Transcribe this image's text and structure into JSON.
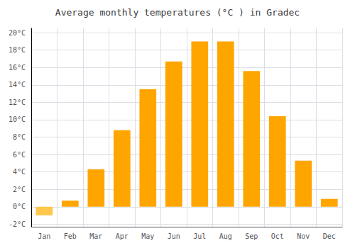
{
  "chart_data": {
    "type": "bar",
    "title": "Average monthly temperatures (°C ) in Gradec",
    "categories": [
      "Jan",
      "Feb",
      "Mar",
      "Apr",
      "May",
      "Jun",
      "Jul",
      "Aug",
      "Sep",
      "Oct",
      "Nov",
      "Dec"
    ],
    "values": [
      -1.0,
      0.7,
      4.3,
      8.8,
      13.5,
      16.7,
      19.0,
      19.0,
      15.6,
      10.4,
      5.3,
      0.9
    ],
    "colors": [
      "#FFC84C",
      "#FFA500",
      "#FFA500",
      "#FFA500",
      "#FFA500",
      "#FFA500",
      "#FFA500",
      "#FFA500",
      "#FFA500",
      "#FFA500",
      "#FFA500",
      "#FFA500"
    ],
    "ylim": [
      -2.3,
      20.5
    ],
    "yticks": [
      {
        "value": -2,
        "label": "-2°C"
      },
      {
        "value": 0,
        "label": "0°C"
      },
      {
        "value": 2,
        "label": "2°C"
      },
      {
        "value": 4,
        "label": "4°C"
      },
      {
        "value": 6,
        "label": "6°C"
      },
      {
        "value": 8,
        "label": "8°C"
      },
      {
        "value": 10,
        "label": "10°C"
      },
      {
        "value": 12,
        "label": "12°C"
      },
      {
        "value": 14,
        "label": "14°C"
      },
      {
        "value": 16,
        "label": "16°C"
      },
      {
        "value": 18,
        "label": "18°C"
      },
      {
        "value": 20,
        "label": "20°C"
      }
    ],
    "grid": true
  }
}
